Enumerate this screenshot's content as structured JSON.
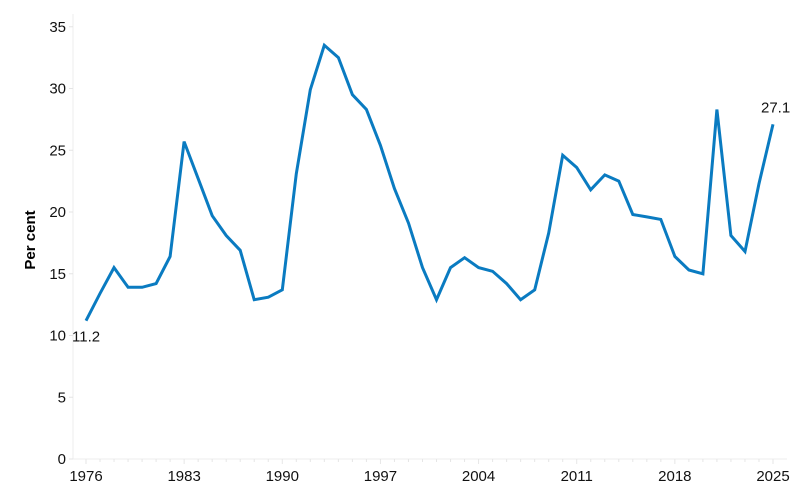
{
  "chart_data": {
    "type": "line",
    "title": "",
    "xlabel": "",
    "ylabel": "Per cent",
    "ylim": [
      0,
      35
    ],
    "xlim": [
      1976,
      2025
    ],
    "grid": false,
    "yticks": [
      0,
      5,
      10,
      15,
      20,
      25,
      30,
      35
    ],
    "xticks": [
      1976,
      1983,
      1990,
      1997,
      2004,
      2011,
      2018,
      2025
    ],
    "x": [
      1976,
      1977,
      1978,
      1979,
      1980,
      1981,
      1982,
      1983,
      1984,
      1985,
      1986,
      1987,
      1988,
      1989,
      1990,
      1991,
      1992,
      1993,
      1994,
      1995,
      1996,
      1997,
      1998,
      1999,
      2000,
      2001,
      2002,
      2003,
      2004,
      2005,
      2006,
      2007,
      2008,
      2009,
      2010,
      2011,
      2012,
      2013,
      2014,
      2015,
      2016,
      2017,
      2018,
      2019,
      2020,
      2021,
      2022,
      2023,
      2024,
      2025
    ],
    "series": [
      {
        "name": "Per cent",
        "color": "#0A7BC1",
        "values": [
          11.2,
          13.4,
          15.5,
          13.9,
          13.9,
          14.2,
          16.4,
          25.7,
          22.7,
          19.7,
          18.1,
          16.9,
          12.9,
          13.1,
          13.7,
          23.1,
          29.9,
          33.5,
          32.5,
          29.5,
          28.3,
          25.4,
          21.9,
          19.1,
          15.5,
          12.9,
          15.5,
          16.3,
          15.5,
          15.2,
          14.2,
          12.9,
          13.7,
          18.3,
          24.6,
          23.6,
          21.8,
          23.0,
          22.5,
          19.8,
          19.6,
          19.4,
          16.4,
          15.3,
          15.0,
          28.3,
          18.1,
          16.8,
          22.3,
          27.1
        ]
      }
    ],
    "annotations": [
      {
        "x": 1976,
        "y": 11.2,
        "text": "11.2"
      },
      {
        "x": 2025,
        "y": 27.1,
        "text": "27.1"
      }
    ]
  }
}
